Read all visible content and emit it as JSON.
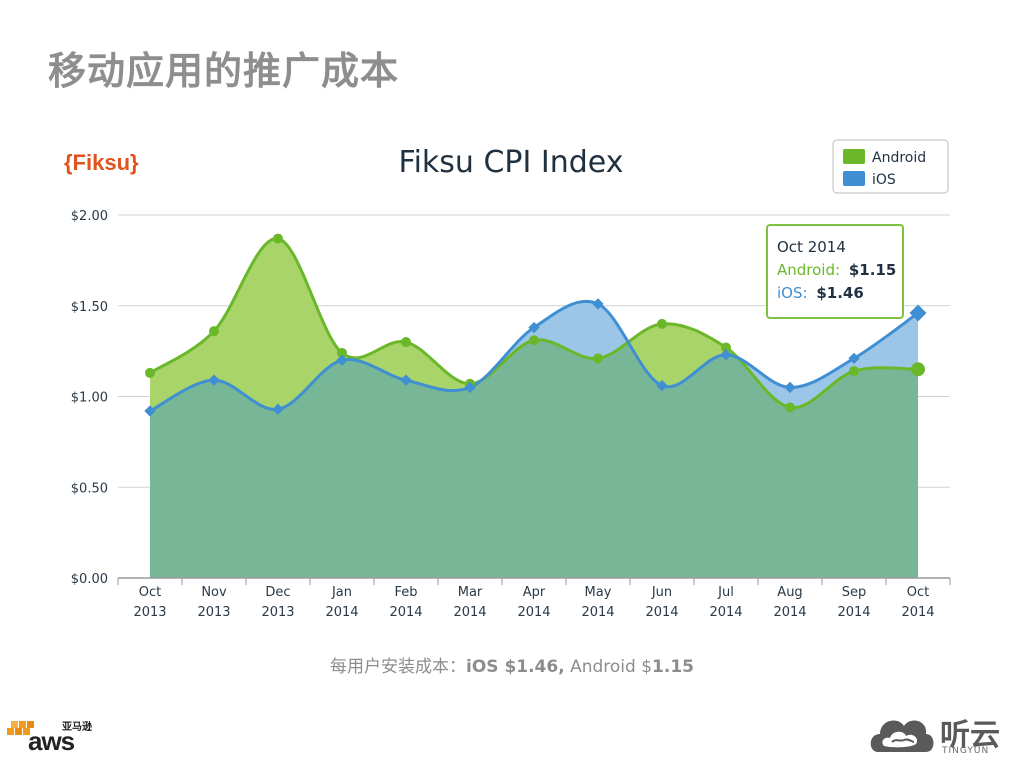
{
  "slide": {
    "title": "移动应用的推广成本",
    "caption_prefix": "每用户安装成本：",
    "caption_ios": "iOS $1.46,",
    "caption_android_label": " Android $",
    "caption_android_value": "1.15"
  },
  "brand": {
    "fiksu": "{Fiksu}",
    "aws_cn": "亚马逊",
    "aws": "aws",
    "tingyun_cn": "听云",
    "tingyun_en": "TINGYUN"
  },
  "colors": {
    "android_line": "#6ab82a",
    "android_fill": "#a8d46a",
    "ios_line": "#3f8fd2",
    "ios_fill": "#9cc6e8",
    "overlap_fill": "#78b698",
    "fiksu_orange": "#e0531e",
    "tooltip_border": "#7fc241"
  },
  "chart_data": {
    "type": "area",
    "title": "Fiksu CPI Index",
    "categories": [
      [
        "Oct",
        "2013"
      ],
      [
        "Nov",
        "2013"
      ],
      [
        "Dec",
        "2013"
      ],
      [
        "Jan",
        "2014"
      ],
      [
        "Feb",
        "2014"
      ],
      [
        "Mar",
        "2014"
      ],
      [
        "Apr",
        "2014"
      ],
      [
        "May",
        "2014"
      ],
      [
        "Jun",
        "2014"
      ],
      [
        "Jul",
        "2014"
      ],
      [
        "Aug",
        "2014"
      ],
      [
        "Sep",
        "2014"
      ],
      [
        "Oct",
        "2014"
      ]
    ],
    "series": [
      {
        "name": "Android",
        "values": [
          1.13,
          1.36,
          1.87,
          1.24,
          1.3,
          1.07,
          1.31,
          1.21,
          1.4,
          1.27,
          0.94,
          1.14,
          1.15
        ]
      },
      {
        "name": "iOS",
        "values": [
          0.92,
          1.09,
          0.93,
          1.2,
          1.09,
          1.05,
          1.38,
          1.51,
          1.06,
          1.23,
          1.05,
          1.21,
          1.46
        ]
      }
    ],
    "ylim": [
      0,
      2
    ],
    "yticks": [
      "$0.00",
      "$0.50",
      "$1.00",
      "$1.50",
      "$2.00"
    ],
    "ytick_values": [
      0,
      0.5,
      1,
      1.5,
      2
    ],
    "legend": {
      "placement": "top-right",
      "entries": [
        "Android",
        "iOS"
      ]
    },
    "tooltip": {
      "title": "Oct 2014",
      "android_label": "Android:",
      "android_value": "$1.15",
      "ios_label": "iOS:",
      "ios_value": "$1.46"
    },
    "grid": true
  }
}
